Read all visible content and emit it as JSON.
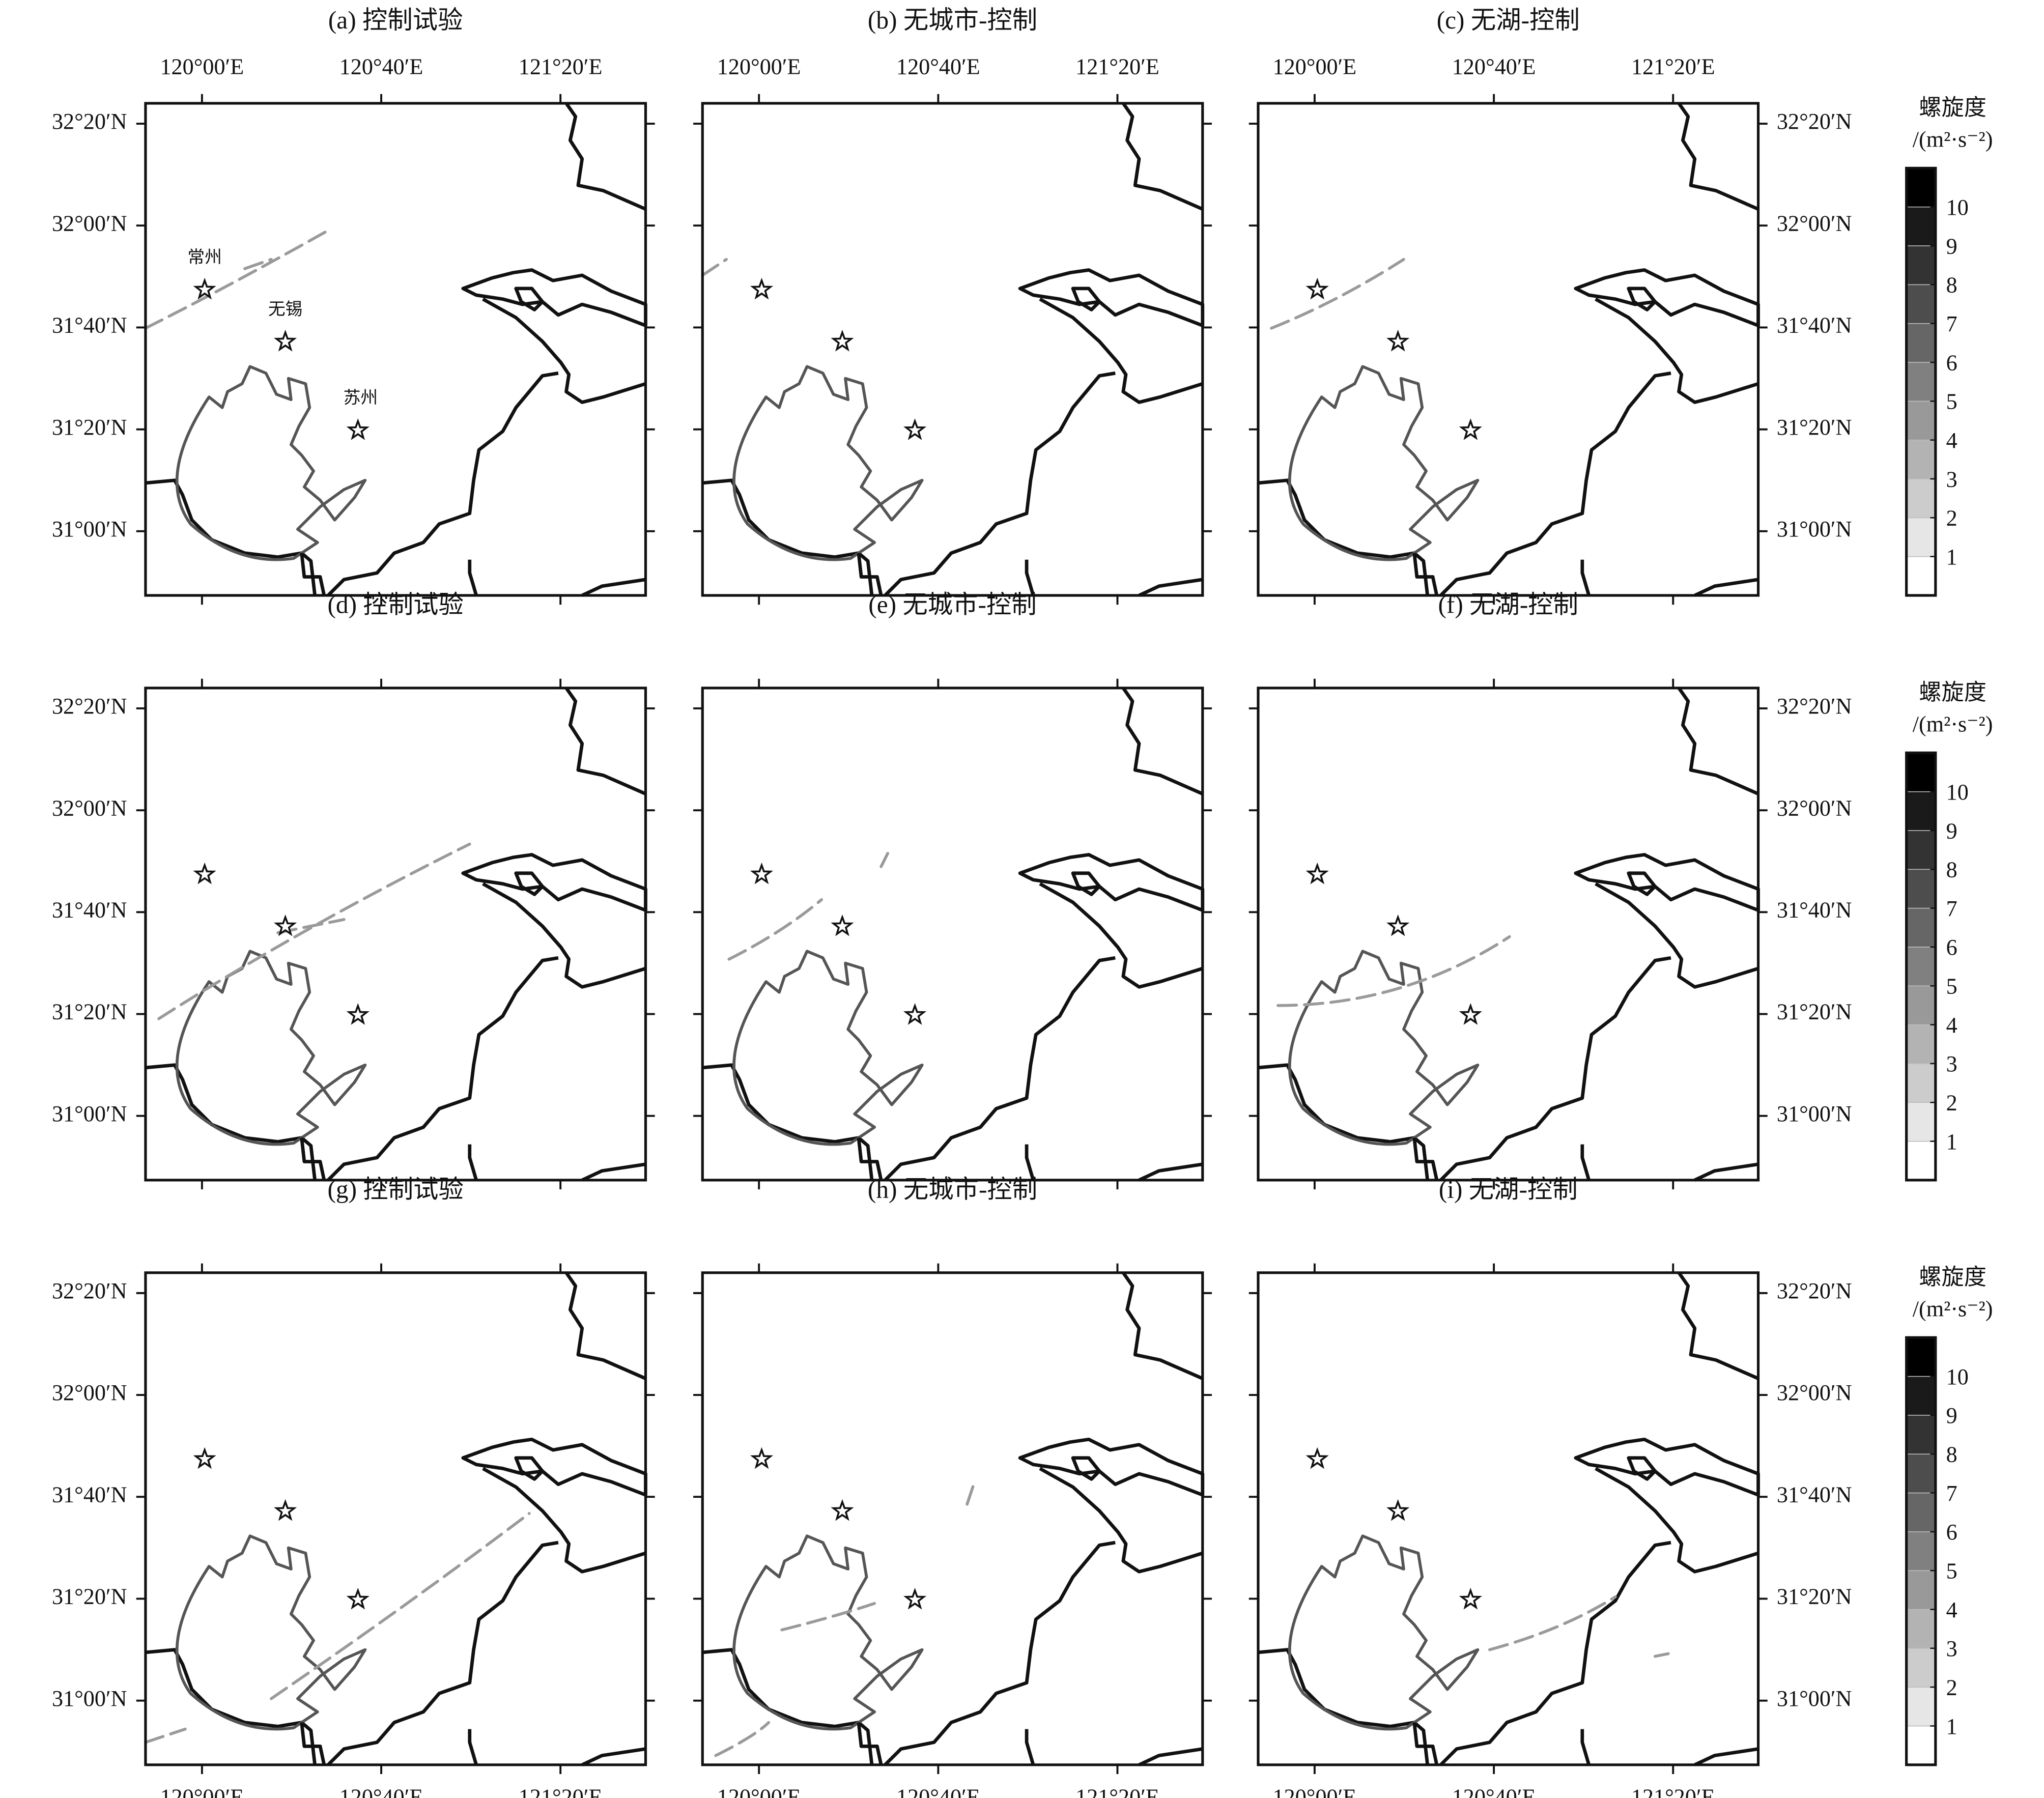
{
  "panels": [
    {
      "title": "(a) 控制试验"
    },
    {
      "title": "(b) 无城市-控制"
    },
    {
      "title": "(c) 无湖-控制"
    },
    {
      "title": "(d) 控制试验"
    },
    {
      "title": "(e) 无城市-控制"
    },
    {
      "title": "(f) 无湖-控制"
    },
    {
      "title": "(g) 控制试验"
    },
    {
      "title": "(h) 无城市-控制"
    },
    {
      "title": "(i) 无湖-控制"
    }
  ],
  "xlim": [
    119.79,
    121.65
  ],
  "ylim": [
    30.79,
    32.4
  ],
  "lon_ticks": [
    {
      "value": 120.0,
      "label": "120°00′E"
    },
    {
      "value": 120.6667,
      "label": "120°40′E"
    },
    {
      "value": 121.3333,
      "label": "121°20′E"
    }
  ],
  "lat_ticks": [
    {
      "value": 32.3333,
      "label": "32°20′N"
    },
    {
      "value": 32.0,
      "label": "32°00′N"
    },
    {
      "value": 31.6667,
      "label": "31°40′N"
    },
    {
      "value": 31.3333,
      "label": "31°20′N"
    },
    {
      "value": 31.0,
      "label": "31°00′N"
    }
  ],
  "cities": [
    {
      "name": "常州",
      "lon": 120.01,
      "lat": 31.79
    },
    {
      "name": "无锡",
      "lon": 120.31,
      "lat": 31.62
    },
    {
      "name": "苏州",
      "lon": 120.58,
      "lat": 31.33
    }
  ],
  "colorbar": {
    "title": "螺旋度",
    "unit": "/(m²·s⁻²)",
    "lim": [
      0,
      11
    ],
    "ticks": [
      1,
      2,
      3,
      4,
      5,
      6,
      7,
      8,
      9,
      10
    ]
  }
}
